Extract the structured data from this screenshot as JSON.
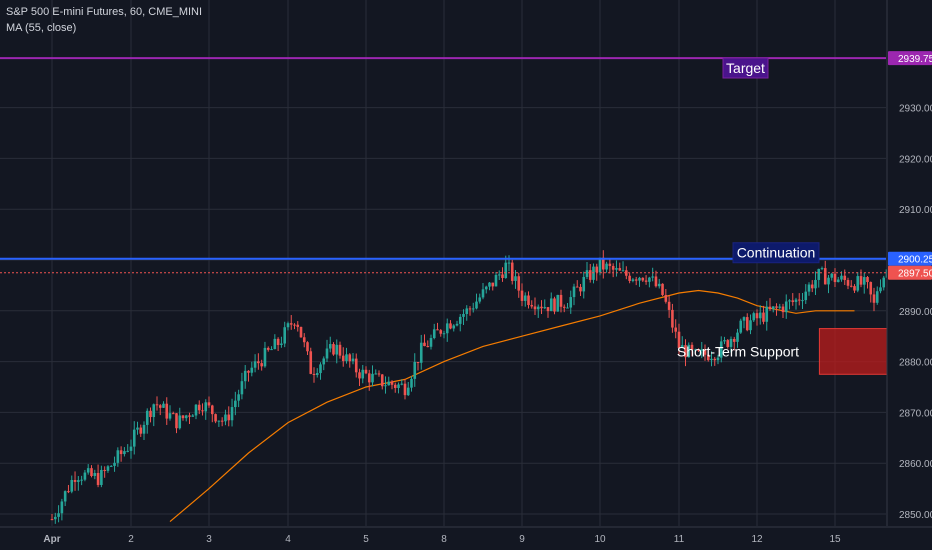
{
  "legend": {
    "title": "S&P 500 E-mini Futures, 60, CME_MINI",
    "ma": "MA (55, close)"
  },
  "colors": {
    "background": "#131722",
    "grid": "#2a2e39",
    "up": "#26a69a",
    "down": "#ef5350",
    "ma": "#f57c00",
    "target_line": "#9c27b0",
    "continuation_line": "#2962ff",
    "last_price": "#ef5350",
    "support_box": "#b71c1c"
  },
  "chart_data": {
    "type": "candlestick",
    "x_tick_labels": [
      "Apr",
      "2",
      "3",
      "4",
      "5",
      "8",
      "9",
      "10",
      "11",
      "12",
      "15"
    ],
    "y_ticks": [
      "2850.00",
      "2860.00",
      "2870.00",
      "2880.00",
      "2890.00",
      "2900.00",
      "2910.00",
      "2920.00",
      "2930.00"
    ],
    "ylim": [
      2848,
      2944
    ],
    "grid": true,
    "price_labels": {
      "target": "2939.75",
      "continuation": "2900.25",
      "last": "2897.50"
    },
    "levels": {
      "target": 2939.75,
      "continuation": 2900.25,
      "last": 2897.5
    },
    "annotations": {
      "target": "Target",
      "continuation": "Continuation",
      "support": "Short-Term Support"
    },
    "support_zone": {
      "from_day": 9.8,
      "to_day": 11.75,
      "low": 2877.5,
      "high": 2886.5
    },
    "ma_points": [
      [
        1.5,
        2848.5
      ],
      [
        2.0,
        2855
      ],
      [
        2.5,
        2862
      ],
      [
        3.0,
        2868
      ],
      [
        3.5,
        2872
      ],
      [
        4.0,
        2875
      ],
      [
        4.5,
        2876.5
      ],
      [
        5.0,
        2880
      ],
      [
        5.5,
        2883
      ],
      [
        6.0,
        2885
      ],
      [
        6.5,
        2887
      ],
      [
        7.0,
        2889
      ],
      [
        7.5,
        2891.5
      ],
      [
        8.0,
        2893.5
      ],
      [
        8.25,
        2894
      ],
      [
        8.5,
        2893.5
      ],
      [
        8.75,
        2892.5
      ],
      [
        9.0,
        2891
      ],
      [
        9.5,
        2889.5
      ],
      [
        9.75,
        2890
      ],
      [
        10.0,
        2890
      ],
      [
        10.25,
        2890
      ]
    ],
    "candle_path": [
      [
        0,
        2849
      ],
      [
        0.3,
        2858
      ],
      [
        0.6,
        2857
      ],
      [
        1.0,
        2864
      ],
      [
        1.3,
        2872
      ],
      [
        1.6,
        2868
      ],
      [
        1.9,
        2872
      ],
      [
        2.2,
        2868
      ],
      [
        2.5,
        2878
      ],
      [
        2.9,
        2884
      ],
      [
        3.1,
        2889
      ],
      [
        3.3,
        2878
      ],
      [
        3.6,
        2883
      ],
      [
        3.9,
        2878
      ],
      [
        4.2,
        2876
      ],
      [
        4.5,
        2875
      ],
      [
        4.7,
        2882
      ],
      [
        5.0,
        2887
      ],
      [
        5.3,
        2890
      ],
      [
        5.6,
        2895
      ],
      [
        5.8,
        2899
      ],
      [
        6.0,
        2893
      ],
      [
        6.3,
        2891
      ],
      [
        6.6,
        2892
      ],
      [
        6.8,
        2896
      ],
      [
        7.0,
        2899
      ],
      [
        7.3,
        2897
      ],
      [
        7.6,
        2897
      ],
      [
        7.8,
        2893
      ],
      [
        8.0,
        2883
      ],
      [
        8.2,
        2881
      ],
      [
        8.5,
        2882
      ],
      [
        8.8,
        2887
      ],
      [
        9.2,
        2890
      ],
      [
        9.5,
        2892
      ],
      [
        9.8,
        2897
      ],
      [
        10.1,
        2896
      ],
      [
        10.4,
        2895
      ],
      [
        10.5,
        2891
      ],
      [
        10.55,
        2895
      ],
      [
        10.7,
        2899
      ]
    ]
  }
}
